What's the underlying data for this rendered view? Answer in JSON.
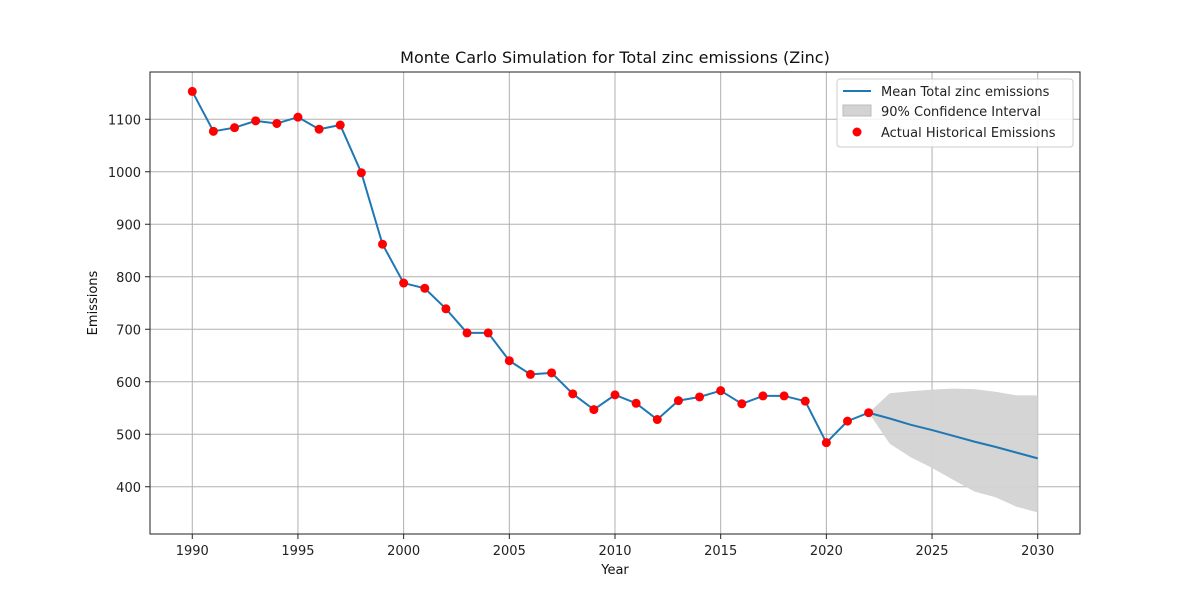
{
  "chart_data": {
    "type": "line",
    "title": "Monte Carlo Simulation for Total zinc emissions (Zinc)",
    "xlabel": "Year",
    "ylabel": "Emissions",
    "xlim": [
      1988,
      2032
    ],
    "ylim": [
      310,
      1190
    ],
    "xticks": [
      1990,
      1995,
      2000,
      2005,
      2010,
      2015,
      2020,
      2025,
      2030
    ],
    "yticks": [
      400,
      500,
      600,
      700,
      800,
      900,
      1000,
      1100
    ],
    "grid": true,
    "legend_position": "top-right",
    "colors": {
      "mean_line": "#1f77b4",
      "confidence_fill": "#d3d3d3",
      "actual_points": "#ff0000"
    },
    "series": [
      {
        "name": "Mean Total zinc emissions",
        "kind": "line",
        "x": [
          1990,
          1991,
          1992,
          1993,
          1994,
          1995,
          1996,
          1997,
          1998,
          1999,
          2000,
          2001,
          2002,
          2003,
          2004,
          2005,
          2006,
          2007,
          2008,
          2009,
          2010,
          2011,
          2012,
          2013,
          2014,
          2015,
          2016,
          2017,
          2018,
          2019,
          2020,
          2021,
          2022,
          2023,
          2024,
          2025,
          2026,
          2027,
          2028,
          2029,
          2030
        ],
        "y": [
          1153,
          1077,
          1084,
          1097,
          1092,
          1104,
          1081,
          1089,
          998,
          862,
          788,
          778,
          739,
          693,
          693,
          640,
          614,
          617,
          577,
          547,
          575,
          559,
          528,
          564,
          571,
          583,
          558,
          573,
          573,
          563,
          484,
          525,
          541,
          530,
          518,
          508,
          497,
          486,
          476,
          465,
          454
        ]
      },
      {
        "name": "90% Confidence Interval",
        "kind": "band",
        "x": [
          2022,
          2023,
          2024,
          2025,
          2026,
          2027,
          2028,
          2029,
          2030
        ],
        "lower": [
          541,
          482,
          456,
          436,
          413,
          391,
          380,
          362,
          351
        ],
        "upper": [
          541,
          578,
          582,
          585,
          587,
          586,
          581,
          574,
          574
        ]
      },
      {
        "name": "Actual Historical Emissions",
        "kind": "scatter",
        "x": [
          1990,
          1991,
          1992,
          1993,
          1994,
          1995,
          1996,
          1997,
          1998,
          1999,
          2000,
          2001,
          2002,
          2003,
          2004,
          2005,
          2006,
          2007,
          2008,
          2009,
          2010,
          2011,
          2012,
          2013,
          2014,
          2015,
          2016,
          2017,
          2018,
          2019,
          2020,
          2021,
          2022
        ],
        "y": [
          1153,
          1077,
          1084,
          1097,
          1092,
          1104,
          1081,
          1089,
          998,
          862,
          788,
          778,
          739,
          693,
          693,
          640,
          614,
          617,
          577,
          547,
          575,
          559,
          528,
          564,
          571,
          583,
          558,
          573,
          573,
          563,
          484,
          525,
          541
        ]
      }
    ]
  }
}
